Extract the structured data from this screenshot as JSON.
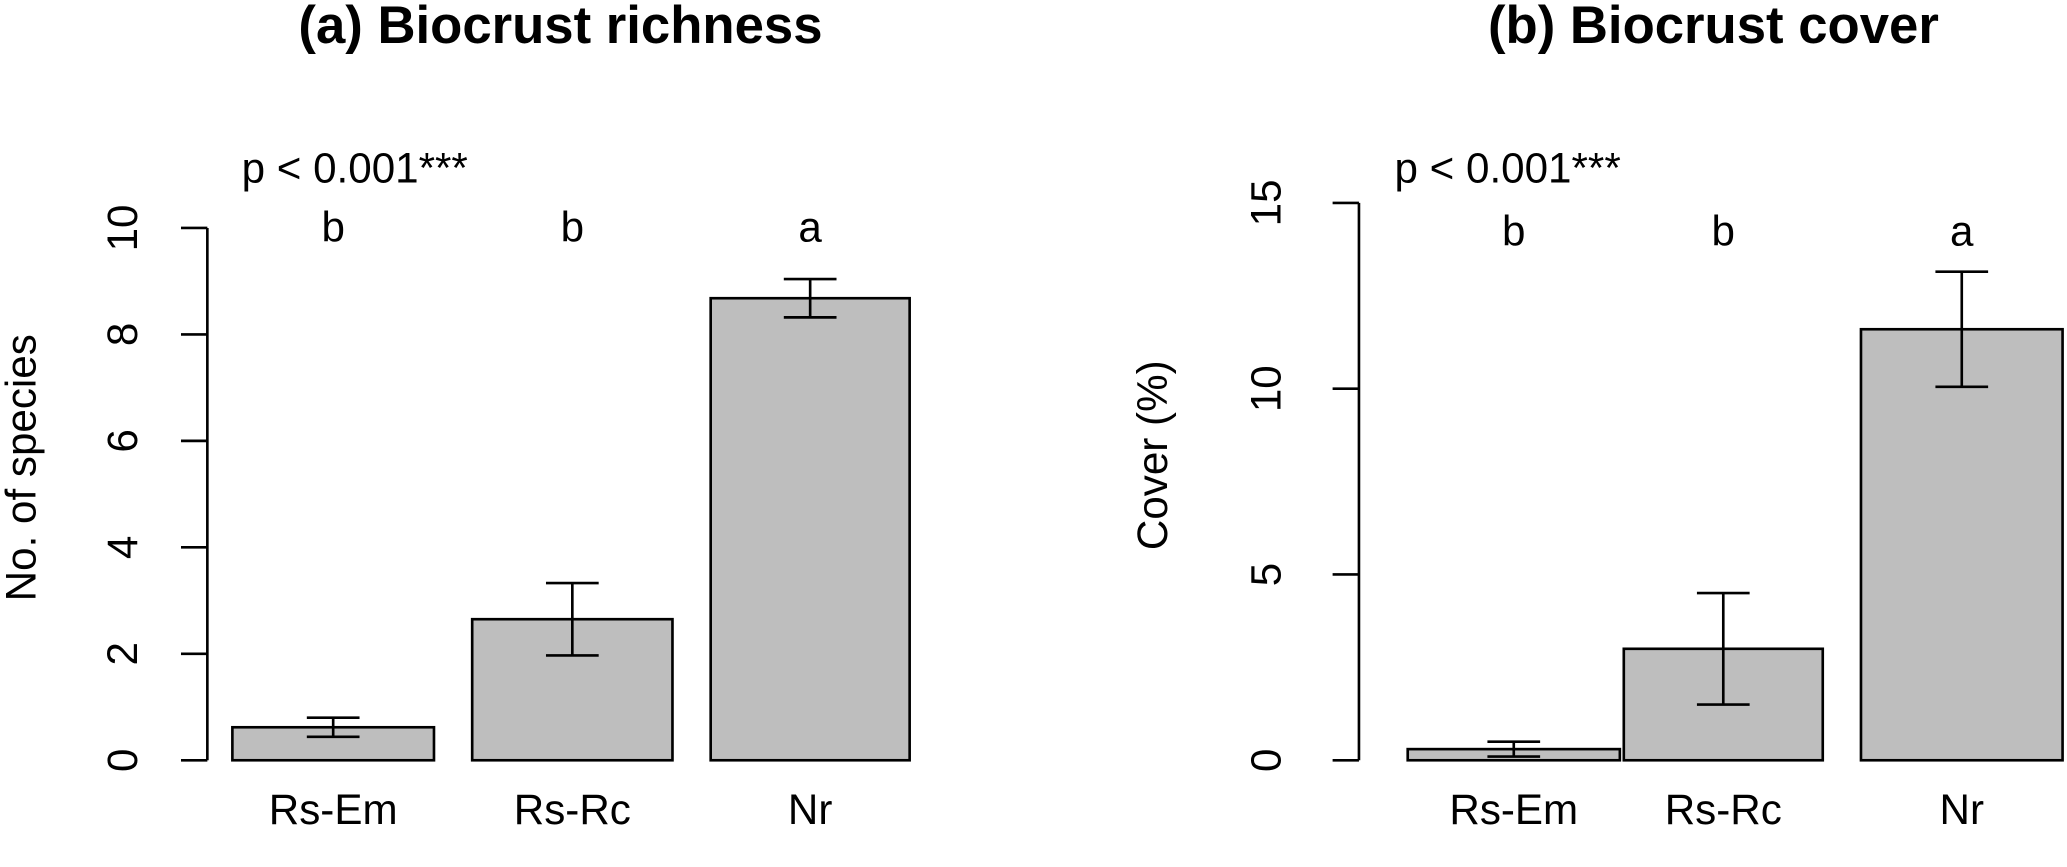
{
  "chart_data": [
    {
      "type": "bar",
      "title": "(a) Biocrust richness",
      "ylabel": "No. of species",
      "annotation": "p < 0.001***",
      "categories": [
        "Rs-Em",
        "Rs-Rc",
        "Nr"
      ],
      "values": [
        0.62,
        2.65,
        8.68
      ],
      "errors": [
        0.18,
        0.68,
        0.36
      ],
      "group_letters": [
        "b",
        "b",
        "a"
      ],
      "color": "#bebebe",
      "ylim": [
        0,
        10
      ],
      "yticks": [
        0,
        2,
        4,
        6,
        8,
        10
      ]
    },
    {
      "type": "bar",
      "title": "(b) Biocrust cover",
      "ylabel": "Cover (%)",
      "annotation": "p < 0.001***",
      "categories": [
        "Rs-Em",
        "Rs-Rc",
        "Nr"
      ],
      "values": [
        0.3,
        3.0,
        11.6
      ],
      "errors": [
        0.2,
        1.5,
        1.55
      ],
      "group_letters": [
        "b",
        "b",
        "a"
      ],
      "color": "#bebebe",
      "ylim": [
        0,
        15
      ],
      "yticks": [
        0,
        5,
        10,
        15
      ]
    }
  ]
}
